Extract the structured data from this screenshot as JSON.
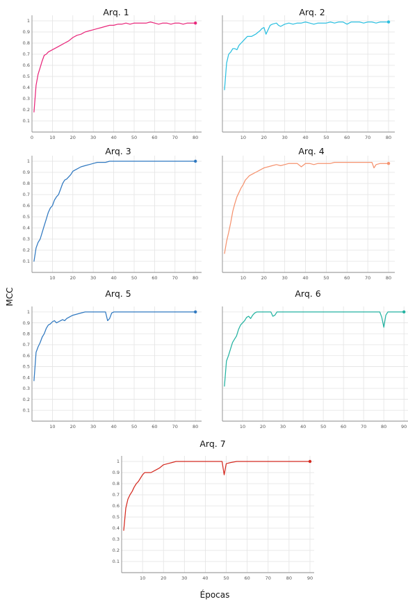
{
  "ylabel": "MCC",
  "xlabel": "Épocas",
  "chart_data": [
    {
      "type": "line",
      "title": "Arq. 1",
      "color": "#e8267a",
      "x_range": [
        0,
        83
      ],
      "ylim": [
        0,
        1.05
      ],
      "x_ticks": [
        0,
        10,
        20,
        30,
        40,
        50,
        60,
        70,
        80
      ],
      "y_ticks": [
        0.1,
        0.2,
        0.3,
        0.4,
        0.5,
        0.6,
        0.7,
        0.8,
        0.9,
        1
      ],
      "x": [
        1,
        2,
        3,
        4,
        5,
        6,
        7,
        8,
        10,
        12,
        14,
        16,
        18,
        20,
        22,
        24,
        26,
        28,
        30,
        32,
        34,
        36,
        38,
        40,
        42,
        44,
        46,
        48,
        50,
        52,
        54,
        56,
        58,
        60,
        62,
        64,
        66,
        68,
        70,
        72,
        74,
        76,
        78,
        80
      ],
      "y": [
        0.18,
        0.42,
        0.52,
        0.58,
        0.64,
        0.69,
        0.7,
        0.72,
        0.74,
        0.76,
        0.78,
        0.8,
        0.82,
        0.85,
        0.87,
        0.88,
        0.9,
        0.91,
        0.92,
        0.93,
        0.94,
        0.95,
        0.96,
        0.96,
        0.97,
        0.97,
        0.98,
        0.97,
        0.98,
        0.98,
        0.98,
        0.98,
        0.99,
        0.98,
        0.97,
        0.98,
        0.98,
        0.97,
        0.98,
        0.98,
        0.97,
        0.98,
        0.98,
        0.98
      ]
    },
    {
      "type": "line",
      "title": "Arq. 2",
      "color": "#2bbfe0",
      "x_range": [
        0,
        83
      ],
      "ylim": [
        0,
        1.05
      ],
      "x_ticks": [
        10,
        20,
        30,
        40,
        50,
        60,
        70,
        80
      ],
      "y_ticks": [],
      "x": [
        1,
        2,
        3,
        4,
        5,
        6,
        7,
        8,
        9,
        10,
        11,
        12,
        14,
        16,
        18,
        19,
        20,
        21,
        22,
        23,
        24,
        26,
        27,
        28,
        30,
        32,
        34,
        36,
        38,
        40,
        42,
        44,
        46,
        48,
        50,
        52,
        54,
        56,
        58,
        60,
        62,
        64,
        66,
        68,
        70,
        72,
        74,
        76,
        78,
        80
      ],
      "y": [
        0.38,
        0.62,
        0.7,
        0.72,
        0.75,
        0.75,
        0.74,
        0.78,
        0.8,
        0.82,
        0.84,
        0.86,
        0.86,
        0.88,
        0.91,
        0.93,
        0.94,
        0.88,
        0.92,
        0.96,
        0.97,
        0.98,
        0.96,
        0.95,
        0.97,
        0.98,
        0.97,
        0.98,
        0.98,
        0.99,
        0.98,
        0.97,
        0.98,
        0.98,
        0.98,
        0.99,
        0.98,
        0.99,
        0.99,
        0.97,
        0.99,
        0.99,
        0.99,
        0.98,
        0.99,
        0.99,
        0.98,
        0.99,
        0.99,
        0.99
      ]
    },
    {
      "type": "line",
      "title": "Arq. 3",
      "color": "#2f78c0",
      "x_range": [
        0,
        83
      ],
      "ylim": [
        0,
        1.05
      ],
      "x_ticks": [
        10,
        20,
        30,
        40,
        50,
        60,
        70,
        80
      ],
      "y_ticks": [
        0.1,
        0.2,
        0.3,
        0.4,
        0.5,
        0.6,
        0.7,
        0.8,
        0.9,
        1
      ],
      "x": [
        1,
        2,
        3,
        4,
        5,
        6,
        7,
        8,
        9,
        10,
        11,
        12,
        13,
        14,
        15,
        16,
        17,
        18,
        19,
        20,
        21,
        22,
        24,
        26,
        28,
        30,
        32,
        34,
        36,
        38,
        40,
        45,
        50,
        60,
        70,
        80
      ],
      "y": [
        0.1,
        0.22,
        0.27,
        0.3,
        0.36,
        0.42,
        0.48,
        0.54,
        0.58,
        0.6,
        0.65,
        0.68,
        0.7,
        0.75,
        0.8,
        0.83,
        0.84,
        0.86,
        0.88,
        0.91,
        0.92,
        0.93,
        0.95,
        0.96,
        0.97,
        0.98,
        0.99,
        0.99,
        0.99,
        1.0,
        1.0,
        1.0,
        1.0,
        1.0,
        1.0,
        1.0
      ]
    },
    {
      "type": "line",
      "title": "Arq. 4",
      "color": "#f5926e",
      "x_range": [
        0,
        83
      ],
      "ylim": [
        0,
        1.05
      ],
      "x_ticks": [
        10,
        20,
        30,
        40,
        50,
        60,
        70,
        80
      ],
      "y_ticks": [],
      "x": [
        1,
        2,
        3,
        4,
        5,
        6,
        7,
        8,
        9,
        10,
        11,
        12,
        13,
        14,
        15,
        16,
        18,
        20,
        22,
        24,
        26,
        28,
        30,
        32,
        34,
        36,
        38,
        40,
        42,
        44,
        46,
        48,
        50,
        52,
        54,
        56,
        58,
        60,
        62,
        64,
        66,
        68,
        70,
        72,
        73,
        74,
        76,
        78,
        80
      ],
      "y": [
        0.17,
        0.28,
        0.36,
        0.45,
        0.55,
        0.62,
        0.68,
        0.72,
        0.76,
        0.79,
        0.83,
        0.85,
        0.87,
        0.88,
        0.89,
        0.9,
        0.92,
        0.94,
        0.95,
        0.96,
        0.97,
        0.96,
        0.97,
        0.98,
        0.98,
        0.98,
        0.95,
        0.98,
        0.98,
        0.97,
        0.98,
        0.98,
        0.98,
        0.98,
        0.99,
        0.99,
        0.99,
        0.99,
        0.99,
        0.99,
        0.99,
        0.99,
        0.99,
        0.99,
        0.94,
        0.97,
        0.98,
        0.98,
        0.98
      ]
    },
    {
      "type": "line",
      "title": "Arq. 5",
      "color": "#2f78c0",
      "x_range": [
        0,
        83
      ],
      "ylim": [
        0,
        1.05
      ],
      "x_ticks": [
        10,
        20,
        30,
        40,
        50,
        60,
        70,
        80
      ],
      "y_ticks": [
        0.1,
        0.2,
        0.3,
        0.4,
        0.5,
        0.6,
        0.7,
        0.8,
        0.9,
        1
      ],
      "x": [
        1,
        2,
        3,
        4,
        5,
        6,
        7,
        8,
        9,
        10,
        11,
        12,
        13,
        14,
        15,
        16,
        17,
        18,
        19,
        20,
        22,
        24,
        26,
        28,
        30,
        32,
        34,
        36,
        37,
        38,
        39,
        40,
        42,
        45,
        50,
        60,
        70,
        80
      ],
      "y": [
        0.37,
        0.63,
        0.68,
        0.72,
        0.77,
        0.8,
        0.85,
        0.88,
        0.89,
        0.91,
        0.92,
        0.9,
        0.91,
        0.92,
        0.93,
        0.92,
        0.94,
        0.95,
        0.96,
        0.97,
        0.98,
        0.99,
        1.0,
        1.0,
        1.0,
        1.0,
        1.0,
        1.0,
        0.92,
        0.94,
        0.99,
        1.0,
        1.0,
        1.0,
        1.0,
        1.0,
        1.0,
        1.0
      ]
    },
    {
      "type": "line",
      "title": "Arq. 6",
      "color": "#22b2a0",
      "x_range": [
        0,
        92
      ],
      "ylim": [
        0,
        1.05
      ],
      "x_ticks": [
        10,
        20,
        30,
        40,
        50,
        60,
        70,
        80,
        90
      ],
      "y_ticks": [],
      "x": [
        1,
        2,
        3,
        4,
        5,
        6,
        7,
        8,
        9,
        10,
        11,
        12,
        13,
        14,
        15,
        16,
        17,
        18,
        19,
        20,
        22,
        24,
        25,
        26,
        27,
        28,
        30,
        35,
        40,
        50,
        60,
        70,
        78,
        79,
        80,
        81,
        82,
        85,
        88,
        90
      ],
      "y": [
        0.32,
        0.55,
        0.6,
        0.66,
        0.72,
        0.75,
        0.78,
        0.84,
        0.88,
        0.9,
        0.92,
        0.95,
        0.96,
        0.94,
        0.97,
        0.99,
        1.0,
        1.0,
        1.0,
        1.0,
        1.0,
        1.0,
        0.96,
        0.97,
        1.0,
        1.0,
        1.0,
        1.0,
        1.0,
        1.0,
        1.0,
        1.0,
        1.0,
        0.95,
        0.86,
        0.97,
        1.0,
        1.0,
        1.0,
        1.0
      ]
    },
    {
      "type": "line",
      "title": "Arq. 7",
      "color": "#d42a20",
      "x_range": [
        0,
        92
      ],
      "ylim": [
        0,
        1.05
      ],
      "x_ticks": [
        10,
        20,
        30,
        40,
        50,
        60,
        70,
        80,
        90
      ],
      "y_ticks": [
        0.1,
        0.2,
        0.3,
        0.4,
        0.5,
        0.6,
        0.7,
        0.8,
        0.9,
        1
      ],
      "x": [
        1,
        2,
        3,
        4,
        5,
        6,
        7,
        8,
        9,
        10,
        11,
        12,
        14,
        16,
        18,
        20,
        22,
        24,
        26,
        28,
        30,
        35,
        40,
        45,
        48,
        49,
        50,
        52,
        55,
        60,
        70,
        80,
        90
      ],
      "y": [
        0.38,
        0.58,
        0.66,
        0.7,
        0.73,
        0.77,
        0.8,
        0.82,
        0.85,
        0.88,
        0.9,
        0.9,
        0.9,
        0.92,
        0.94,
        0.97,
        0.98,
        0.99,
        1.0,
        1.0,
        1.0,
        1.0,
        1.0,
        1.0,
        1.0,
        0.88,
        0.98,
        0.99,
        1.0,
        1.0,
        1.0,
        1.0,
        1.0
      ]
    }
  ]
}
